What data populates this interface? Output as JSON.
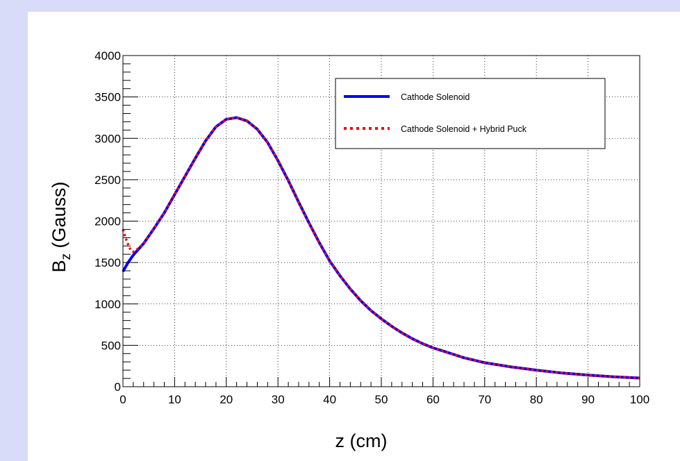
{
  "chart_data": {
    "type": "line",
    "title": "",
    "xlabel": "z (cm)",
    "ylabel_main": "B",
    "ylabel_sub": "z",
    "ylabel_rest": " (Gauss)",
    "xlim": [
      0,
      100
    ],
    "ylim": [
      0,
      4000
    ],
    "xticks": [
      0,
      10,
      20,
      30,
      40,
      50,
      60,
      70,
      80,
      90,
      100
    ],
    "yticks": [
      0,
      500,
      1000,
      1500,
      2000,
      2500,
      3000,
      3500,
      4000
    ],
    "grid": true,
    "legend_position": "top-right",
    "series": [
      {
        "name": "Cathode Solenoid",
        "color": "#0000ff",
        "style": "solid",
        "x": [
          0,
          1,
          2,
          3,
          4,
          5,
          6,
          8,
          10,
          12,
          14,
          16,
          18,
          20,
          22,
          24,
          26,
          28,
          30,
          32,
          34,
          36,
          38,
          40,
          42,
          44,
          46,
          48,
          50,
          52,
          54,
          56,
          58,
          60,
          62,
          64,
          66,
          68,
          70,
          75,
          80,
          85,
          90,
          95,
          100
        ],
        "y": [
          1390,
          1500,
          1590,
          1660,
          1730,
          1820,
          1910,
          2100,
          2320,
          2540,
          2760,
          2970,
          3140,
          3230,
          3250,
          3210,
          3110,
          2950,
          2730,
          2490,
          2230,
          1980,
          1740,
          1520,
          1340,
          1180,
          1040,
          920,
          820,
          730,
          650,
          580,
          520,
          470,
          430,
          390,
          350,
          320,
          290,
          240,
          200,
          165,
          140,
          120,
          105
        ]
      },
      {
        "name": "Cathode Solenoid + Hybrid Puck",
        "color": "#ff0000",
        "style": "dotted",
        "x": [
          0,
          0.5,
          1,
          1.5,
          2,
          3,
          4,
          5,
          6,
          8,
          10,
          12,
          14,
          16,
          18,
          20,
          22,
          24,
          26,
          28,
          30,
          32,
          34,
          36,
          38,
          40,
          42,
          44,
          46,
          48,
          50,
          52,
          54,
          56,
          58,
          60,
          62,
          64,
          66,
          68,
          70,
          75,
          80,
          85,
          90,
          95,
          100
        ],
        "y": [
          1900,
          1800,
          1720,
          1650,
          1630,
          1670,
          1730,
          1820,
          1910,
          2100,
          2320,
          2540,
          2760,
          2970,
          3140,
          3230,
          3250,
          3210,
          3110,
          2950,
          2730,
          2490,
          2230,
          1980,
          1740,
          1520,
          1340,
          1180,
          1040,
          920,
          820,
          730,
          650,
          580,
          520,
          470,
          430,
          390,
          350,
          320,
          290,
          240,
          200,
          165,
          140,
          120,
          105
        ]
      }
    ]
  }
}
